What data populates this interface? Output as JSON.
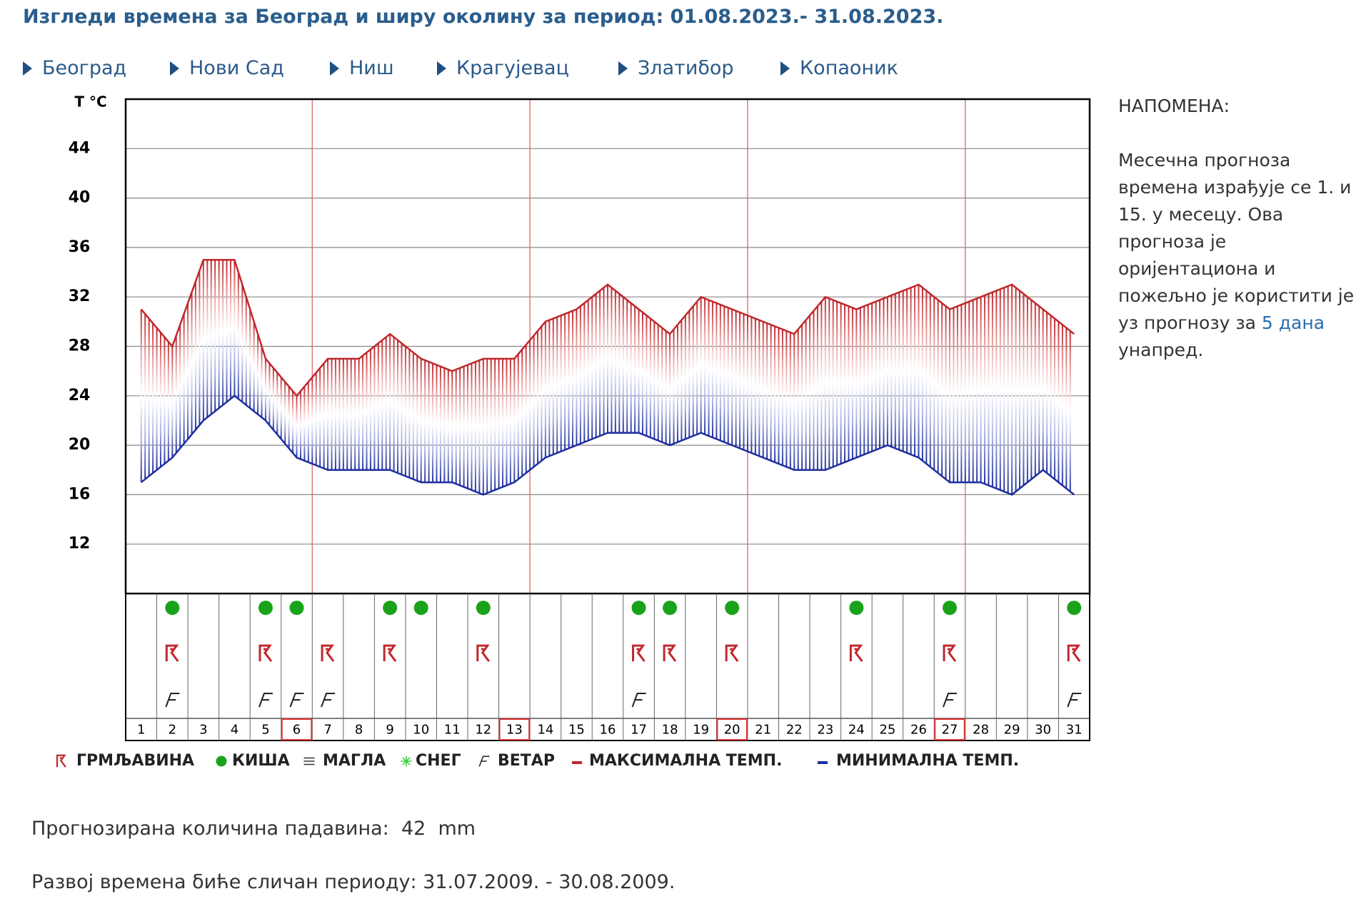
{
  "header": {
    "title": "Изгледи времена за Београд и ширу околину за период: 01.08.2023.- 31.08.2023.",
    "nav": [
      "Београд",
      "Нови Сад",
      "Ниш",
      "Крагујевац",
      "Златибор",
      "Копаоник"
    ]
  },
  "chart_data": {
    "type": "line",
    "y_label": "T °C",
    "categories": [
      "1",
      "2",
      "3",
      "4",
      "5",
      "6",
      "7",
      "8",
      "9",
      "10",
      "11",
      "12",
      "13",
      "14",
      "15",
      "16",
      "17",
      "18",
      "19",
      "20",
      "21",
      "22",
      "23",
      "24",
      "25",
      "26",
      "27",
      "28",
      "29",
      "30",
      "31"
    ],
    "series": [
      {
        "name": "МАКСИМАЛНА ТЕМП.",
        "color": "#c0282d",
        "values": [
          31,
          28,
          35,
          35,
          27,
          24,
          27,
          27,
          29,
          27,
          26,
          27,
          27,
          30,
          31,
          33,
          31,
          29,
          32,
          31,
          30,
          29,
          32,
          31,
          32,
          33,
          31,
          32,
          33,
          31,
          29
        ]
      },
      {
        "name": "МИНИМАЛНА ТЕМП.",
        "color": "#1f2fa0",
        "values": [
          17,
          19,
          22,
          24,
          22,
          19,
          18,
          18,
          18,
          17,
          17,
          16,
          17,
          19,
          20,
          21,
          21,
          20,
          21,
          20,
          19,
          18,
          18,
          19,
          20,
          19,
          17,
          17,
          16,
          18,
          16
        ]
      }
    ],
    "ylim": [
      8,
      48
    ],
    "yticks": [
      12,
      16,
      20,
      24,
      28,
      32,
      36,
      40,
      44
    ],
    "grid": true,
    "weather": {
      "rain": [
        false,
        true,
        false,
        false,
        true,
        true,
        false,
        false,
        true,
        true,
        false,
        true,
        false,
        false,
        false,
        false,
        true,
        true,
        false,
        true,
        false,
        false,
        false,
        true,
        false,
        false,
        true,
        false,
        false,
        false,
        true
      ],
      "thunder": [
        false,
        true,
        false,
        false,
        true,
        false,
        true,
        false,
        true,
        false,
        false,
        true,
        false,
        false,
        false,
        false,
        true,
        true,
        false,
        true,
        false,
        false,
        false,
        true,
        false,
        false,
        true,
        false,
        false,
        false,
        true
      ],
      "wind": [
        false,
        true,
        false,
        false,
        true,
        true,
        true,
        false,
        false,
        false,
        false,
        false,
        false,
        false,
        false,
        false,
        true,
        false,
        false,
        false,
        false,
        false,
        false,
        false,
        false,
        false,
        true,
        false,
        false,
        false,
        true
      ]
    },
    "legend": [
      {
        "symbol": "thunder",
        "label": "ГРМЉАВИНА"
      },
      {
        "symbol": "rain",
        "label": "КИША"
      },
      {
        "symbol": "fog",
        "label": "МАГЛА"
      },
      {
        "symbol": "snow",
        "label": "СНЕГ"
      },
      {
        "symbol": "wind",
        "label": "ВЕТАР"
      }
    ]
  },
  "note": {
    "title": "НАПОМЕНА:",
    "text": "Месечна прогноза времена израђује се 1. и 15. у месецу. Ова прогноза је оријентациона и пожељно је користити је уз прогнозу за",
    "link": "5 дана",
    "text_end": "унапред."
  },
  "precipitation": {
    "label": "Прогнозирана количина падавина:",
    "value": 42,
    "unit": "mm"
  },
  "analog": "Развој времена биће сличан периоду: 31.07.2009. - 30.08.2009."
}
